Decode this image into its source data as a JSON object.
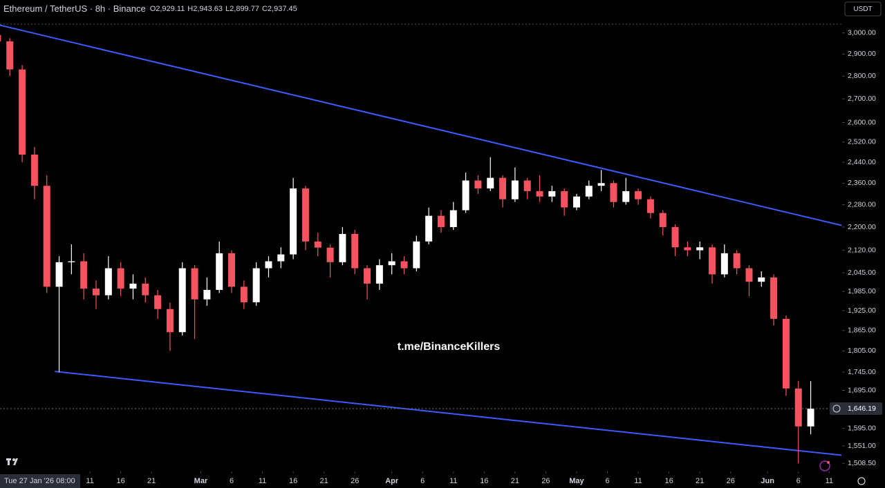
{
  "chart_data": {
    "type": "candlestick",
    "title": "Ethereum / TetherUS · 8h · Binance",
    "ohlc_legend": [
      "O2,929.11",
      "H2,943.63",
      "L2,899.77",
      "C2,937.45"
    ],
    "watermark": "t.me/BinanceKillers",
    "currency": "USDT",
    "log_scale": true,
    "up_color": "#ffffff",
    "down_color": "#f7525f",
    "x": [
      0,
      2,
      4,
      6,
      8,
      10,
      12,
      14,
      16,
      18,
      20,
      22,
      24,
      26,
      28,
      30,
      32,
      34,
      36,
      38,
      40,
      42,
      44,
      46,
      48,
      50,
      52,
      54,
      56,
      58,
      60,
      62,
      64,
      66,
      68,
      70,
      72,
      74,
      76,
      78,
      80,
      82,
      84,
      86,
      88,
      90,
      92,
      94,
      96,
      98,
      100,
      102,
      104,
      106,
      108,
      110,
      112,
      114,
      116,
      118,
      120,
      122,
      124,
      126,
      128,
      130,
      132
    ],
    "open": [
      2990,
      2960,
      2830,
      2470,
      2350,
      2000,
      2080,
      2083,
      1994,
      1973,
      2060,
      1994,
      2010,
      1973,
      1930,
      1860,
      2060,
      1960,
      1990,
      2110,
      2000,
      1951,
      2060,
      2083,
      2106,
      2340,
      2150,
      2129,
      2080,
      2176,
      2060,
      2010,
      2070,
      2083,
      2060,
      2150,
      2240,
      2200,
      2260,
      2370,
      2340,
      2380,
      2300,
      2370,
      2330,
      2310,
      2330,
      2270,
      2310,
      2350,
      2360,
      2290,
      2330,
      2300,
      2250,
      2200,
      2130,
      2120,
      2130,
      2040,
      2110,
      2060,
      2016,
      2030,
      1900,
      1700,
      1600
    ],
    "high": [
      3040,
      2975,
      2850,
      2500,
      2390,
      2100,
      2140,
      2110,
      2020,
      2100,
      2080,
      2040,
      2030,
      1990,
      1950,
      2080,
      2070,
      2030,
      2150,
      2120,
      2020,
      2080,
      2100,
      2130,
      2380,
      2350,
      2180,
      2140,
      2200,
      2190,
      2070,
      2090,
      2110,
      2100,
      2170,
      2270,
      2260,
      2290,
      2400,
      2390,
      2460,
      2390,
      2420,
      2380,
      2390,
      2350,
      2340,
      2320,
      2370,
      2410,
      2370,
      2380,
      2340,
      2310,
      2260,
      2210,
      2150,
      2150,
      2140,
      2140,
      2120,
      2070,
      2050,
      2040,
      1910,
      1720,
      1720
    ],
    "low": [
      2930,
      2800,
      2440,
      2300,
      1980,
      1745,
      2040,
      1960,
      1930,
      1960,
      1970,
      1960,
      1950,
      1900,
      1805,
      1850,
      1840,
      1940,
      1980,
      1980,
      1930,
      1940,
      2030,
      2060,
      2090,
      2120,
      2100,
      2030,
      2070,
      2040,
      1960,
      1990,
      2040,
      2040,
      2050,
      2140,
      2180,
      2190,
      2250,
      2320,
      2330,
      2270,
      2290,
      2300,
      2290,
      2290,
      2240,
      2260,
      2300,
      2330,
      2270,
      2280,
      2280,
      2230,
      2170,
      2100,
      2100,
      2090,
      2010,
      2030,
      2040,
      1970,
      2000,
      1880,
      1680,
      1508,
      1580
    ],
    "close": [
      2960,
      2830,
      2470,
      2350,
      2000,
      2080,
      2083,
      1994,
      1973,
      2060,
      1994,
      2010,
      1973,
      1930,
      1860,
      2060,
      1960,
      1990,
      2110,
      2000,
      1951,
      2060,
      2083,
      2106,
      2340,
      2150,
      2129,
      2080,
      2176,
      2060,
      2010,
      2070,
      2083,
      2060,
      2150,
      2240,
      2200,
      2260,
      2370,
      2340,
      2380,
      2300,
      2370,
      2330,
      2310,
      2330,
      2270,
      2310,
      2350,
      2360,
      2290,
      2330,
      2300,
      2250,
      2200,
      2130,
      2120,
      2130,
      2040,
      2110,
      2060,
      2016,
      2030,
      1900,
      1700,
      1600,
      1646.19
    ],
    "last_price": {
      "value": 1646.19,
      "label": "1,646.19"
    },
    "trendlines": [
      {
        "color": "#3d5afe",
        "x": [
          0,
          137
        ],
        "y": [
          3040,
          2206
        ]
      },
      {
        "color": "#3d5afe",
        "x": [
          9.3,
          137
        ],
        "y": [
          1747,
          1528
        ]
      }
    ],
    "xlim": [
      0.4,
      137.1
    ],
    "ylim": [
      1489,
      3162
    ],
    "yticks": [
      {
        "value": 3000,
        "label": "3,000.00"
      },
      {
        "value": 2900,
        "label": "2,900.00"
      },
      {
        "value": 2800,
        "label": "2,800.00"
      },
      {
        "value": 2700,
        "label": "2,700.00"
      },
      {
        "value": 2600,
        "label": "2,600.00"
      },
      {
        "value": 2520,
        "label": "2,520.00"
      },
      {
        "value": 2440,
        "label": "2,440.00"
      },
      {
        "value": 2360,
        "label": "2,360.00"
      },
      {
        "value": 2280,
        "label": "2,280.00"
      },
      {
        "value": 2200,
        "label": "2,200.00"
      },
      {
        "value": 2120,
        "label": "2,120.00"
      },
      {
        "value": 2045,
        "label": "2,045.00"
      },
      {
        "value": 1985,
        "label": "1,985.00"
      },
      {
        "value": 1925,
        "label": "1,925.00"
      },
      {
        "value": 1865,
        "label": "1,865.00"
      },
      {
        "value": 1805,
        "label": "1,805.00"
      },
      {
        "value": 1745,
        "label": "1,745.00"
      },
      {
        "value": 1695,
        "label": "1,695.00"
      },
      {
        "value": 1595,
        "label": "1,595.00"
      },
      {
        "value": 1551,
        "label": "1,551.00"
      },
      {
        "value": 1508.5,
        "label": "1,508.50"
      }
    ],
    "cursor_label": {
      "value": 0.33,
      "label": "Tue 27 Jan '26  08:00"
    },
    "xticks": [
      {
        "value": 15,
        "label": "11"
      },
      {
        "value": 20,
        "label": "16"
      },
      {
        "value": 25,
        "label": "21"
      },
      {
        "value": 33,
        "label": "Mar"
      },
      {
        "value": 38,
        "label": "6"
      },
      {
        "value": 43,
        "label": "11"
      },
      {
        "value": 48,
        "label": "16"
      },
      {
        "value": 53,
        "label": "21"
      },
      {
        "value": 58,
        "label": "26"
      },
      {
        "value": 64,
        "label": "Apr"
      },
      {
        "value": 69,
        "label": "6"
      },
      {
        "value": 74,
        "label": "11"
      },
      {
        "value": 79,
        "label": "16"
      },
      {
        "value": 84,
        "label": "21"
      },
      {
        "value": 89,
        "label": "26"
      },
      {
        "value": 94,
        "label": "May"
      },
      {
        "value": 99,
        "label": "6"
      },
      {
        "value": 104,
        "label": "11"
      },
      {
        "value": 109,
        "label": "16"
      },
      {
        "value": 114,
        "label": "21"
      },
      {
        "value": 119,
        "label": "26"
      },
      {
        "value": 125,
        "label": "Jun"
      },
      {
        "value": 130,
        "label": "6"
      },
      {
        "value": 135,
        "label": "11"
      }
    ]
  }
}
